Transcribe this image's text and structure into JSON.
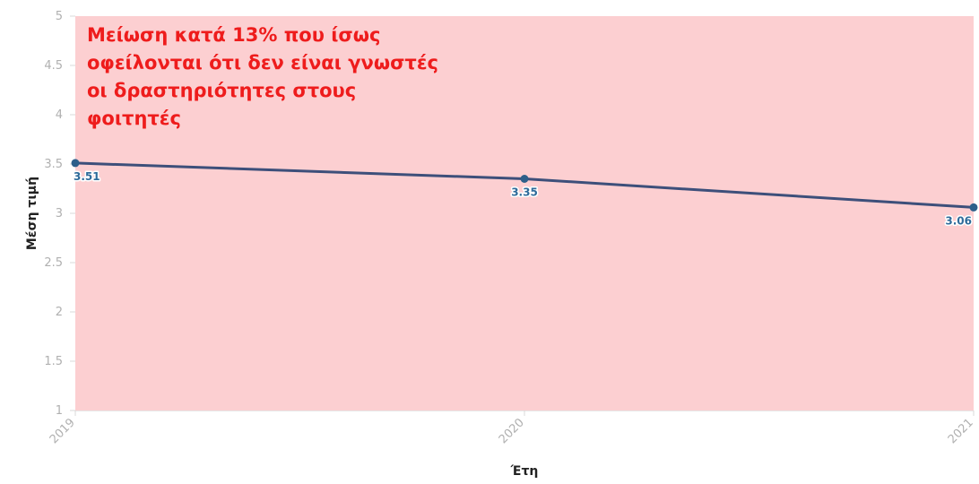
{
  "chart_data": {
    "type": "line",
    "title": "",
    "xlabel": "Έτη",
    "ylabel": "Μέση τιμή",
    "categories": [
      "2019",
      "2020",
      "2021"
    ],
    "series": [
      {
        "values": [
          3.51,
          3.35,
          3.06
        ],
        "color": "#3d4f7a"
      }
    ],
    "data_labels": [
      "3.51",
      "3.35",
      "3.06"
    ],
    "ylim": [
      1,
      5
    ],
    "yticks": [
      "1",
      "1.5",
      "2",
      "2.5",
      "3",
      "3.5",
      "4",
      "4.5",
      "5"
    ],
    "grid": false,
    "legend": "none",
    "highlight_band_color": "#fccfd1",
    "annotation": "Μείωση κατά 13% που ίσως οφείλονται ότι δεν είναι γνωστές οι δραστηριότητες στους φοιτητές",
    "annotation_color": "#ee1c1c"
  }
}
